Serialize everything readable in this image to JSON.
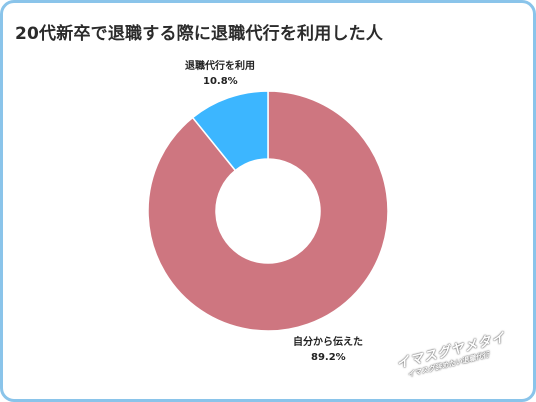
{
  "chart_data": {
    "type": "pie",
    "title": "20代新卒で退職する際に退職代行を利用した人",
    "donut": true,
    "start": "12 o'clock",
    "direction": "clockwise",
    "slices": [
      {
        "label": "自分から伝えた",
        "value": 89.2,
        "value_label": "89.2%",
        "color": "#ce7680"
      },
      {
        "label": "退職代行を利用",
        "value": 10.8,
        "value_label": "10.8%",
        "color": "#3cb6ff"
      }
    ]
  },
  "watermark": {
    "main": "イマスグヤメタイ",
    "sub": "イマスグ辞めたい退職代行"
  },
  "colors": {
    "frame_border": "#8ac4ea",
    "title_text": "#2b2b2b",
    "slice_separator": "#ffffff"
  }
}
